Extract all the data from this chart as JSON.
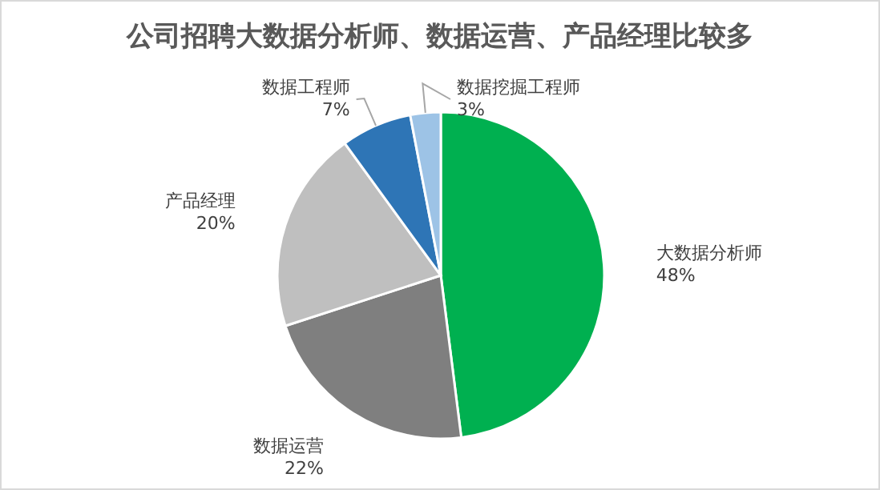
{
  "chart_data": {
    "type": "pie",
    "title": "公司招聘大数据分析师、数据运营、产品经理比较多",
    "categories": [
      "大数据分析师",
      "数据运营",
      "产品经理",
      "数据工程师",
      "数据挖掘工程师"
    ],
    "values": [
      48,
      22,
      20,
      7,
      3
    ],
    "colors": [
      "#00b050",
      "#7f7f7f",
      "#bfbfbf",
      "#2e75b6",
      "#9dc3e6"
    ],
    "value_labels": [
      "48%",
      "22%",
      "20%",
      "7%",
      "3%"
    ]
  }
}
